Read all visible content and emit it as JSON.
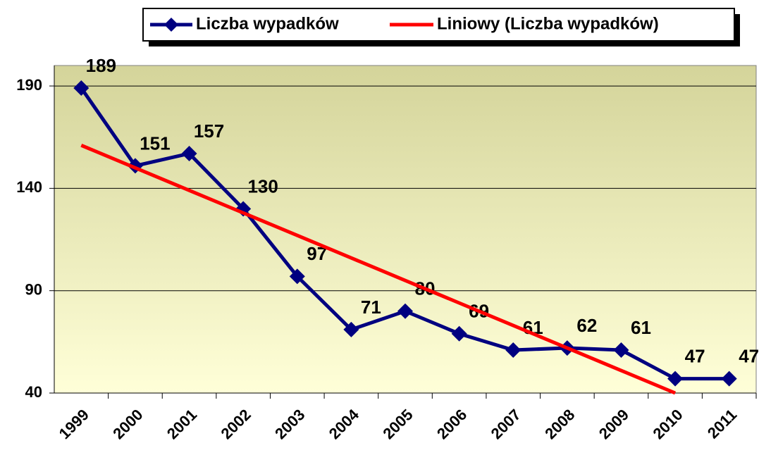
{
  "chart_data": {
    "type": "line",
    "categories": [
      "1999",
      "2000",
      "2001",
      "2002",
      "2003",
      "2004",
      "2005",
      "2006",
      "2007",
      "2008",
      "2009",
      "2010",
      "2011"
    ],
    "series": [
      {
        "name": "Liczba wypadków",
        "color": "#000080",
        "values": [
          189,
          151,
          157,
          130,
          97,
          71,
          80,
          69,
          61,
          62,
          61,
          47,
          47
        ],
        "data_labels": true
      },
      {
        "name": "Liniowy (Liczba wypadków)",
        "color": "#ff0000",
        "values": [
          161,
          150,
          139,
          128,
          117,
          106,
          95,
          84,
          73,
          62,
          51,
          40,
          null
        ],
        "data_labels": false
      }
    ],
    "ylim": [
      40,
      200
    ],
    "yticks": [
      40,
      90,
      140,
      190
    ],
    "grid": true,
    "legend": "top"
  }
}
